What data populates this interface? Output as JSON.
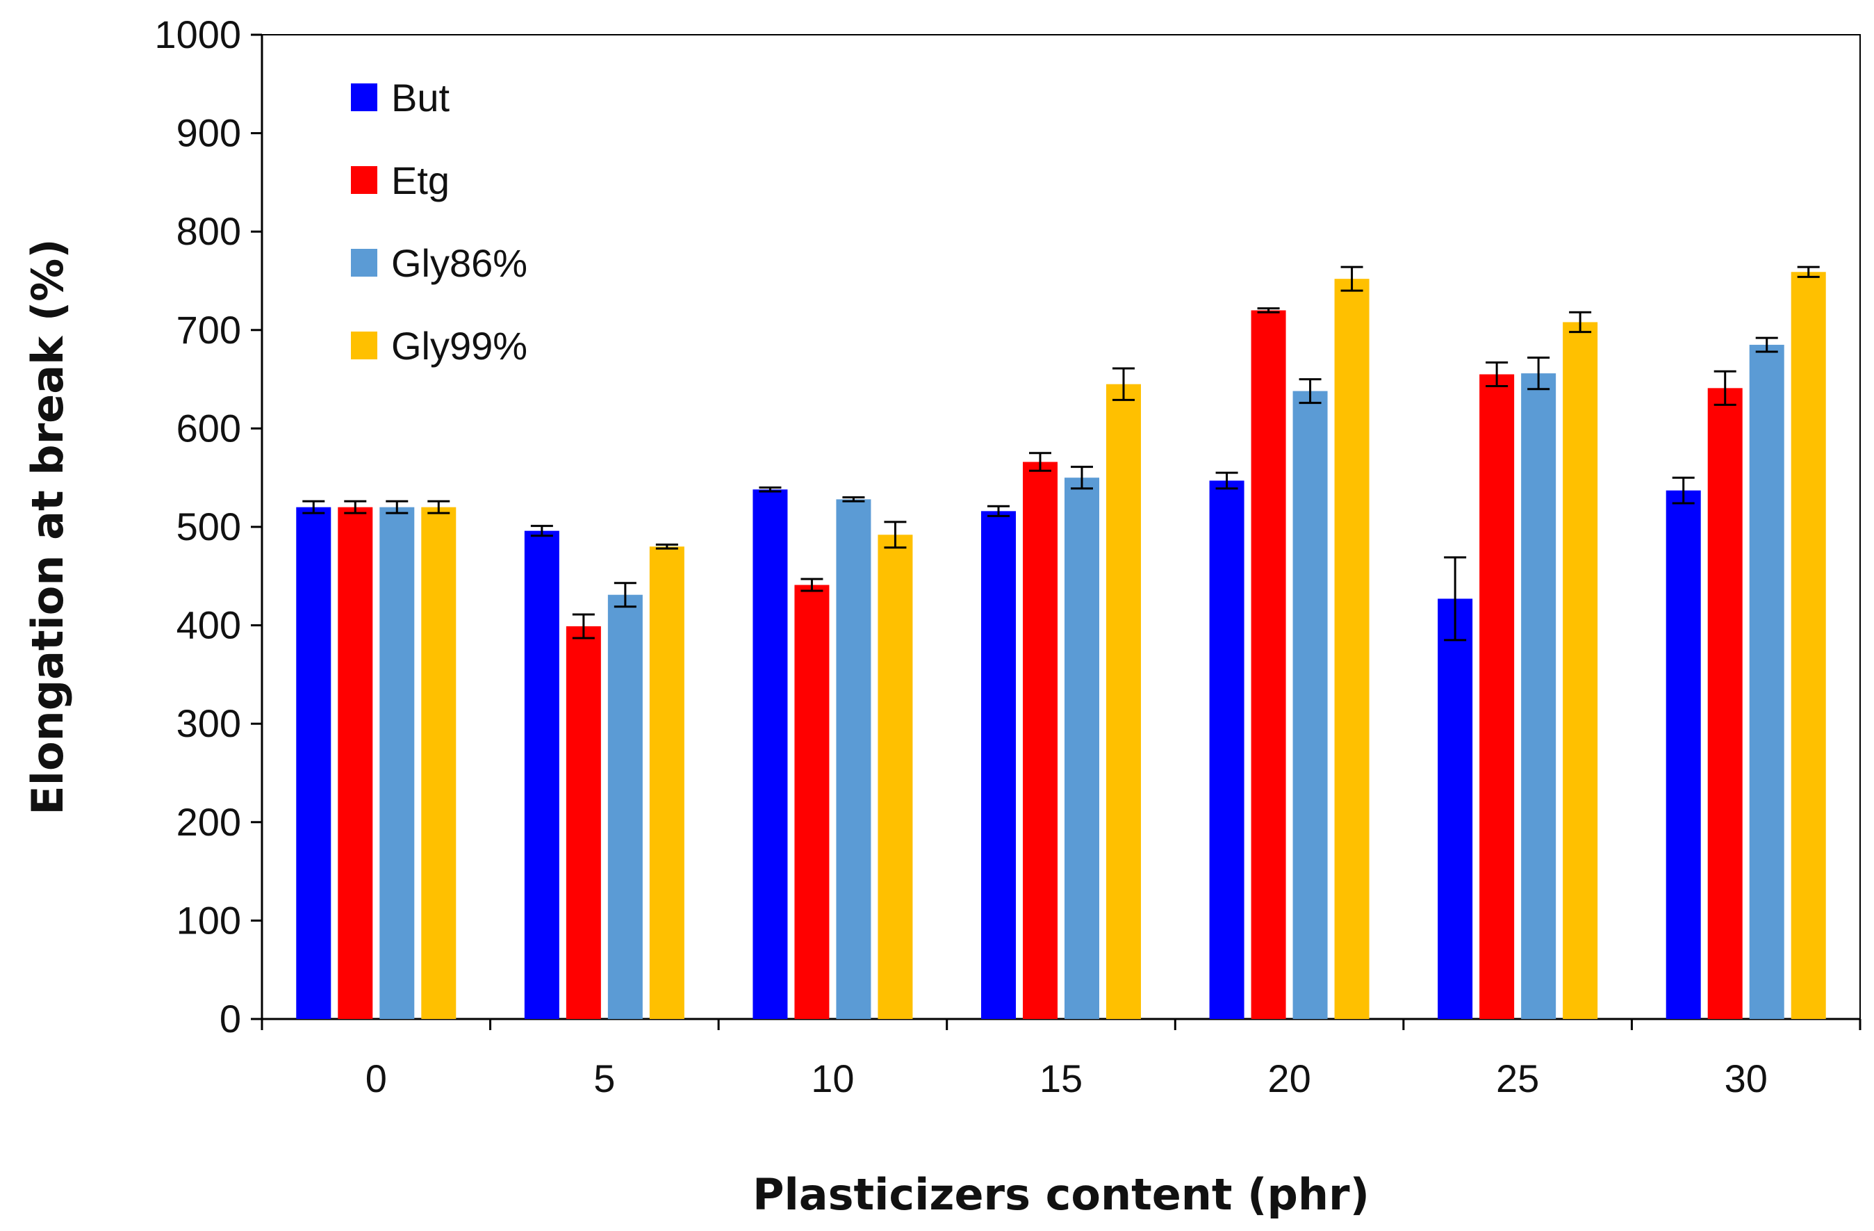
{
  "chart_data": {
    "type": "bar",
    "title": "",
    "xlabel": "Plasticizers content (phr)",
    "ylabel": "Elongation at break (%)",
    "ylim": [
      0,
      1000
    ],
    "yticks": [
      0,
      100,
      200,
      300,
      400,
      500,
      600,
      700,
      800,
      900,
      1000
    ],
    "yticks_text": [
      "0",
      "100",
      "200",
      "300",
      "400",
      "500",
      "600",
      "700",
      "800",
      "900",
      "1000"
    ],
    "categories": [
      "0",
      "5",
      "10",
      "15",
      "20",
      "25",
      "30"
    ],
    "legend_position": "top-left",
    "series": [
      {
        "name": "But",
        "color": "#0000FF",
        "values": [
          520,
          496,
          538,
          516,
          547,
          427,
          537
        ],
        "errors": [
          6,
          5,
          2,
          5,
          8,
          42,
          13
        ]
      },
      {
        "name": "Etg",
        "color": "#FF0000",
        "values": [
          520,
          399,
          441,
          566,
          720,
          655,
          641
        ],
        "errors": [
          6,
          12,
          6,
          9,
          2,
          12,
          17
        ]
      },
      {
        "name": "Gly86%",
        "color": "#5B9BD5",
        "values": [
          520,
          431,
          528,
          550,
          638,
          656,
          685
        ],
        "errors": [
          6,
          12,
          2,
          11,
          12,
          16,
          7
        ]
      },
      {
        "name": "Gly99%",
        "color": "#FFC000",
        "values": [
          520,
          480,
          492,
          645,
          752,
          708,
          759
        ],
        "errors": [
          6,
          2,
          13,
          16,
          12,
          10,
          5
        ]
      }
    ]
  }
}
